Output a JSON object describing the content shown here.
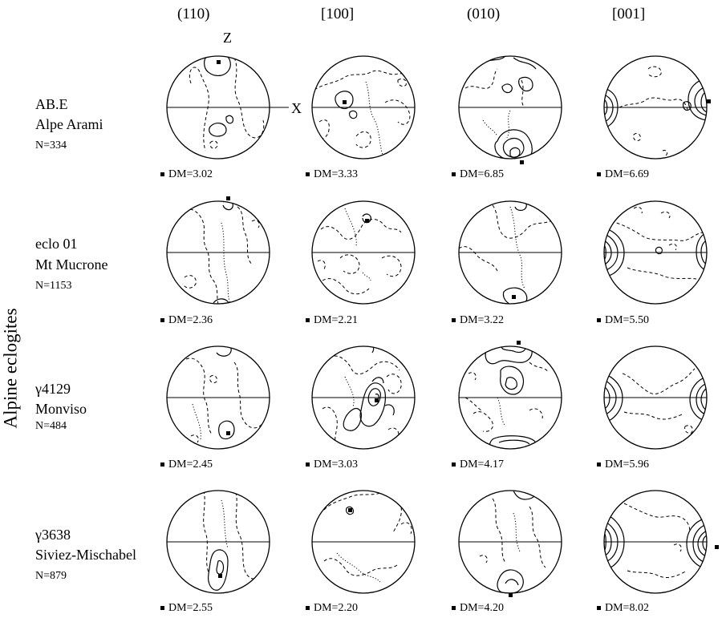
{
  "side_label": "Alpine eclogites",
  "columns": [
    "(110)",
    "[100]",
    "(010)",
    "[001]"
  ],
  "axis_labels": {
    "z": "Z",
    "x": "X"
  },
  "samples": [
    {
      "name": "AB.E",
      "locality": "Alpe Arami",
      "count": "N=334",
      "dm": [
        "DM=3.02",
        "DM=3.33",
        "DM=6.85",
        "DM=6.69"
      ]
    },
    {
      "name": "eclo 01",
      "locality": "Mt Mucrone",
      "count": "N=1153",
      "dm": [
        "DM=2.36",
        "DM=2.21",
        "DM=3.22",
        "DM=5.50"
      ]
    },
    {
      "name": "γ4129",
      "locality": "Monviso",
      "count": "N=484",
      "dm": [
        "DM=2.45",
        "DM=3.03",
        "DM=4.17",
        "DM=5.96"
      ]
    },
    {
      "name": "γ3638",
      "locality": "Siviez-Mischabel",
      "count": "N=879",
      "dm": [
        "DM=2.55",
        "DM=2.20",
        "DM=4.20",
        "DM=8.02"
      ]
    }
  ],
  "max_density_marker": "filled-square-icon"
}
